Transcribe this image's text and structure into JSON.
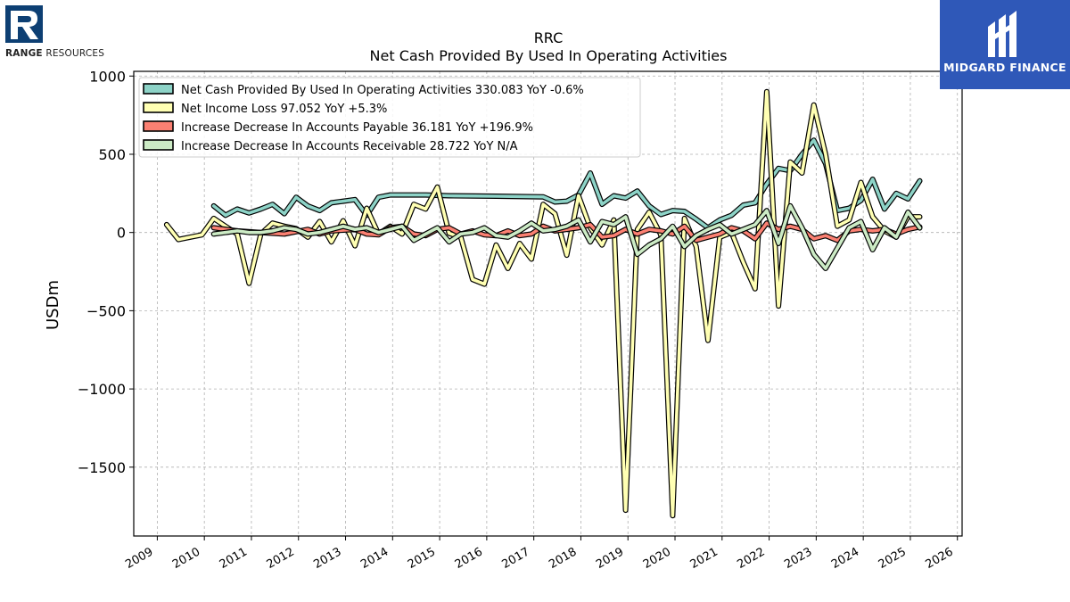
{
  "logos": {
    "left": {
      "word1": "RANGE",
      "word2": "RESOURCES"
    },
    "right": {
      "text": "MIDGARD FINANCE"
    }
  },
  "chart_data": {
    "type": "line",
    "title": "RRC",
    "subtitle": "Net Cash Provided By Used In Operating Activities",
    "xlabel": "",
    "ylabel": "USDm",
    "xlim": [
      2008.5,
      2026.1
    ],
    "ylim": [
      -1940,
      1030
    ],
    "xticks": [
      2009,
      2010,
      2011,
      2012,
      2013,
      2014,
      2015,
      2016,
      2017,
      2018,
      2019,
      2020,
      2021,
      2022,
      2023,
      2024,
      2025,
      2026
    ],
    "yticks": [
      -1500,
      -1000,
      -500,
      0,
      500,
      1000
    ],
    "ytick_labels": [
      "−1500",
      "−1000",
      "−500",
      "0",
      "500",
      "1000"
    ],
    "grid": true,
    "legend_position": "top-left",
    "series": [
      {
        "name": "Net Cash Provided By Used In Operating Activities",
        "legend_label": "Net Cash Provided By Used In Operating Activities  330.083 YoY -0.6%",
        "color": "#8dd3c7",
        "points": [
          [
            2010.2,
            170
          ],
          [
            2010.45,
            110
          ],
          [
            2010.7,
            150
          ],
          [
            2010.95,
            125
          ],
          [
            2011.2,
            150
          ],
          [
            2011.45,
            180
          ],
          [
            2011.7,
            120
          ],
          [
            2011.95,
            225
          ],
          [
            2012.2,
            170
          ],
          [
            2012.45,
            140
          ],
          [
            2012.7,
            190
          ],
          [
            2012.95,
            200
          ],
          [
            2013.2,
            210
          ],
          [
            2013.45,
            110
          ],
          [
            2013.7,
            225
          ],
          [
            2013.95,
            240
          ],
          [
            2014.2,
            240
          ],
          [
            2014.7,
            240
          ],
          [
            2015.2,
            235
          ],
          [
            2016.2,
            232
          ],
          [
            2017.2,
            228
          ],
          [
            2017.45,
            195
          ],
          [
            2017.7,
            200
          ],
          [
            2017.95,
            240
          ],
          [
            2018.2,
            380
          ],
          [
            2018.45,
            180
          ],
          [
            2018.7,
            235
          ],
          [
            2018.95,
            220
          ],
          [
            2019.2,
            265
          ],
          [
            2019.45,
            170
          ],
          [
            2019.7,
            115
          ],
          [
            2019.95,
            140
          ],
          [
            2020.2,
            135
          ],
          [
            2020.45,
            85
          ],
          [
            2020.7,
            30
          ],
          [
            2020.95,
            80
          ],
          [
            2021.2,
            110
          ],
          [
            2021.45,
            175
          ],
          [
            2021.7,
            190
          ],
          [
            2021.95,
            310
          ],
          [
            2022.2,
            410
          ],
          [
            2022.45,
            395
          ],
          [
            2022.7,
            500
          ],
          [
            2022.95,
            590
          ],
          [
            2023.2,
            440
          ],
          [
            2023.45,
            140
          ],
          [
            2023.7,
            155
          ],
          [
            2023.95,
            205
          ],
          [
            2024.2,
            340
          ],
          [
            2024.45,
            150
          ],
          [
            2024.7,
            250
          ],
          [
            2024.95,
            215
          ],
          [
            2025.2,
            330
          ]
        ]
      },
      {
        "name": "Net Income Loss",
        "legend_label": "Net Income Loss  97.052 YoY +5.3%",
        "color": "#ffffb3",
        "points": [
          [
            2009.2,
            50
          ],
          [
            2009.45,
            -45
          ],
          [
            2009.7,
            -30
          ],
          [
            2009.95,
            -15
          ],
          [
            2010.2,
            90
          ],
          [
            2010.45,
            40
          ],
          [
            2010.7,
            -10
          ],
          [
            2010.95,
            -325
          ],
          [
            2011.2,
            -10
          ],
          [
            2011.45,
            60
          ],
          [
            2011.7,
            40
          ],
          [
            2011.95,
            25
          ],
          [
            2012.2,
            -30
          ],
          [
            2012.45,
            70
          ],
          [
            2012.7,
            -60
          ],
          [
            2012.95,
            75
          ],
          [
            2013.2,
            -85
          ],
          [
            2013.45,
            155
          ],
          [
            2013.7,
            -10
          ],
          [
            2013.95,
            40
          ],
          [
            2014.2,
            -10
          ],
          [
            2014.45,
            180
          ],
          [
            2014.7,
            150
          ],
          [
            2014.95,
            290
          ],
          [
            2015.2,
            -5
          ],
          [
            2015.45,
            -30
          ],
          [
            2015.7,
            -300
          ],
          [
            2015.95,
            -330
          ],
          [
            2016.2,
            -80
          ],
          [
            2016.45,
            -230
          ],
          [
            2016.7,
            -70
          ],
          [
            2016.95,
            -170
          ],
          [
            2017.2,
            180
          ],
          [
            2017.45,
            120
          ],
          [
            2017.7,
            -145
          ],
          [
            2017.95,
            235
          ],
          [
            2018.2,
            30
          ],
          [
            2018.45,
            -80
          ],
          [
            2018.7,
            80
          ],
          [
            2018.95,
            -1775
          ],
          [
            2019.2,
            20
          ],
          [
            2019.45,
            130
          ],
          [
            2019.7,
            -15
          ],
          [
            2019.95,
            -1810
          ],
          [
            2020.2,
            90
          ],
          [
            2020.45,
            -90
          ],
          [
            2020.7,
            -690
          ],
          [
            2020.95,
            -30
          ],
          [
            2021.2,
            0
          ],
          [
            2021.45,
            -190
          ],
          [
            2021.7,
            -360
          ],
          [
            2021.95,
            900
          ],
          [
            2022.2,
            -470
          ],
          [
            2022.45,
            450
          ],
          [
            2022.7,
            380
          ],
          [
            2022.95,
            815
          ],
          [
            2023.2,
            500
          ],
          [
            2023.45,
            40
          ],
          [
            2023.7,
            80
          ],
          [
            2023.95,
            320
          ],
          [
            2024.2,
            100
          ],
          [
            2024.45,
            10
          ],
          [
            2024.7,
            -30
          ],
          [
            2024.95,
            100
          ],
          [
            2025.2,
            100
          ]
        ]
      },
      {
        "name": "Increase Decrease In Accounts Payable",
        "legend_label": "Increase Decrease In Accounts Payable  36.181 YoY +196.9%",
        "color": "#fb8072",
        "points": [
          [
            2010.2,
            30
          ],
          [
            2010.7,
            10
          ],
          [
            2011.2,
            0
          ],
          [
            2011.7,
            -10
          ],
          [
            2012.2,
            20
          ],
          [
            2012.45,
            -10
          ],
          [
            2012.7,
            10
          ],
          [
            2013.2,
            20
          ],
          [
            2013.45,
            -10
          ],
          [
            2013.7,
            -15
          ],
          [
            2013.95,
            30
          ],
          [
            2014.2,
            40
          ],
          [
            2014.45,
            -10
          ],
          [
            2014.7,
            -20
          ],
          [
            2014.95,
            20
          ],
          [
            2015.2,
            30
          ],
          [
            2015.45,
            -10
          ],
          [
            2015.7,
            10
          ],
          [
            2015.95,
            -15
          ],
          [
            2016.2,
            -20
          ],
          [
            2016.45,
            10
          ],
          [
            2016.7,
            -20
          ],
          [
            2016.95,
            -10
          ],
          [
            2017.2,
            40
          ],
          [
            2017.45,
            10
          ],
          [
            2017.7,
            20
          ],
          [
            2017.95,
            30
          ],
          [
            2018.2,
            50
          ],
          [
            2018.45,
            -30
          ],
          [
            2018.7,
            -20
          ],
          [
            2018.95,
            20
          ],
          [
            2019.2,
            -10
          ],
          [
            2019.45,
            20
          ],
          [
            2019.7,
            10
          ],
          [
            2019.95,
            -10
          ],
          [
            2020.2,
            40
          ],
          [
            2020.45,
            -50
          ],
          [
            2020.7,
            -30
          ],
          [
            2020.95,
            -10
          ],
          [
            2021.2,
            30
          ],
          [
            2021.45,
            10
          ],
          [
            2021.7,
            -40
          ],
          [
            2021.95,
            60
          ],
          [
            2022.2,
            20
          ],
          [
            2022.45,
            40
          ],
          [
            2022.7,
            20
          ],
          [
            2022.95,
            -40
          ],
          [
            2023.2,
            -20
          ],
          [
            2023.45,
            -50
          ],
          [
            2023.7,
            10
          ],
          [
            2023.95,
            20
          ],
          [
            2024.2,
            10
          ],
          [
            2024.45,
            20
          ],
          [
            2024.7,
            -10
          ],
          [
            2024.95,
            20
          ],
          [
            2025.2,
            36
          ]
        ]
      },
      {
        "name": "Increase Decrease In Accounts Receivable",
        "legend_label": "Increase Decrease In Accounts Receivable  28.722 YoY N/A",
        "color": "#ccebc5",
        "points": [
          [
            2010.2,
            -10
          ],
          [
            2010.45,
            0
          ],
          [
            2010.7,
            10
          ],
          [
            2010.95,
            0
          ],
          [
            2011.2,
            0
          ],
          [
            2011.45,
            10
          ],
          [
            2011.7,
            30
          ],
          [
            2011.95,
            20
          ],
          [
            2012.2,
            -10
          ],
          [
            2012.45,
            0
          ],
          [
            2012.7,
            20
          ],
          [
            2012.95,
            40
          ],
          [
            2013.2,
            20
          ],
          [
            2013.45,
            30
          ],
          [
            2013.7,
            0
          ],
          [
            2013.95,
            20
          ],
          [
            2014.2,
            40
          ],
          [
            2014.45,
            -50
          ],
          [
            2014.7,
            -10
          ],
          [
            2014.95,
            30
          ],
          [
            2015.2,
            -60
          ],
          [
            2015.45,
            -10
          ],
          [
            2015.7,
            0
          ],
          [
            2015.95,
            30
          ],
          [
            2016.2,
            -20
          ],
          [
            2016.45,
            -30
          ],
          [
            2016.7,
            10
          ],
          [
            2016.95,
            60
          ],
          [
            2017.2,
            10
          ],
          [
            2017.45,
            20
          ],
          [
            2017.7,
            40
          ],
          [
            2017.95,
            80
          ],
          [
            2018.2,
            -60
          ],
          [
            2018.45,
            70
          ],
          [
            2018.7,
            50
          ],
          [
            2018.95,
            100
          ],
          [
            2019.2,
            -140
          ],
          [
            2019.45,
            -80
          ],
          [
            2019.7,
            -40
          ],
          [
            2019.95,
            40
          ],
          [
            2020.2,
            -90
          ],
          [
            2020.45,
            -20
          ],
          [
            2020.7,
            20
          ],
          [
            2020.95,
            50
          ],
          [
            2021.2,
            -10
          ],
          [
            2021.45,
            20
          ],
          [
            2021.7,
            50
          ],
          [
            2021.95,
            140
          ],
          [
            2022.2,
            -70
          ],
          [
            2022.45,
            170
          ],
          [
            2022.7,
            30
          ],
          [
            2022.95,
            -140
          ],
          [
            2023.2,
            -230
          ],
          [
            2023.45,
            -100
          ],
          [
            2023.7,
            30
          ],
          [
            2023.95,
            70
          ],
          [
            2024.2,
            -110
          ],
          [
            2024.45,
            30
          ],
          [
            2024.7,
            -30
          ],
          [
            2024.95,
            130
          ],
          [
            2025.2,
            28.7
          ]
        ]
      }
    ]
  }
}
